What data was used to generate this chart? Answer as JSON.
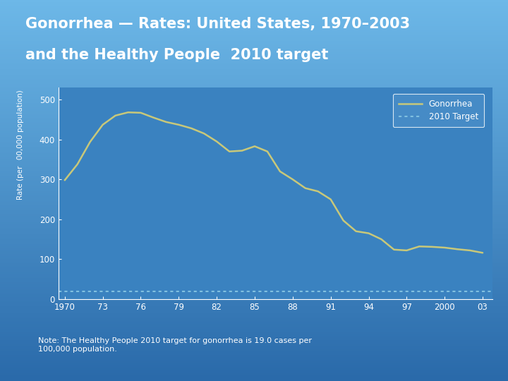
{
  "title_line1": "Gonorrhea — Rates: United States, 1970–2003",
  "title_line2": "and the Healthy People  2010 target",
  "ylabel": "Rate (per  00,000 population)",
  "note": "Note: The Healthy People 2010 target for gonorrhea is 19.0 cases per\n100,000 population.",
  "background_top": "#6db8e8",
  "background_bottom": "#2a6aaa",
  "background_plot": "#3a82c0",
  "line_color": "#c8c87a",
  "target_color": "#80c0e0",
  "title_color": "#ffffff",
  "axis_text_color": "#ffffff",
  "legend_bg": "#4a8ec8",
  "years": [
    1970,
    1971,
    1972,
    1973,
    1974,
    1975,
    1976,
    1977,
    1978,
    1979,
    1980,
    1981,
    1982,
    1983,
    1984,
    1985,
    1986,
    1987,
    1988,
    1989,
    1990,
    1991,
    1992,
    1993,
    1994,
    1995,
    1996,
    1997,
    1998,
    1999,
    2000,
    2001,
    2002,
    2003
  ],
  "gonorrhea_rates": [
    298,
    338,
    394,
    437,
    460,
    468,
    467,
    455,
    444,
    437,
    428,
    415,
    395,
    370,
    372,
    383,
    370,
    320,
    300,
    278,
    270,
    250,
    197,
    170,
    165,
    150,
    124,
    122,
    132,
    131,
    129,
    125,
    122,
    116
  ],
  "target_rate": 19.0,
  "xtick_labels": [
    "1970",
    "73",
    "76",
    "79",
    "82",
    "85",
    "88",
    "91",
    "94",
    "97",
    "2000",
    "03"
  ],
  "xtick_positions": [
    1970,
    1973,
    1976,
    1979,
    1982,
    1985,
    1988,
    1991,
    1994,
    1997,
    2000,
    2003
  ],
  "ytick_positions": [
    0,
    100,
    200,
    300,
    400,
    500
  ],
  "ylim": [
    0,
    530
  ],
  "xlim": [
    1969.5,
    2003.8
  ]
}
